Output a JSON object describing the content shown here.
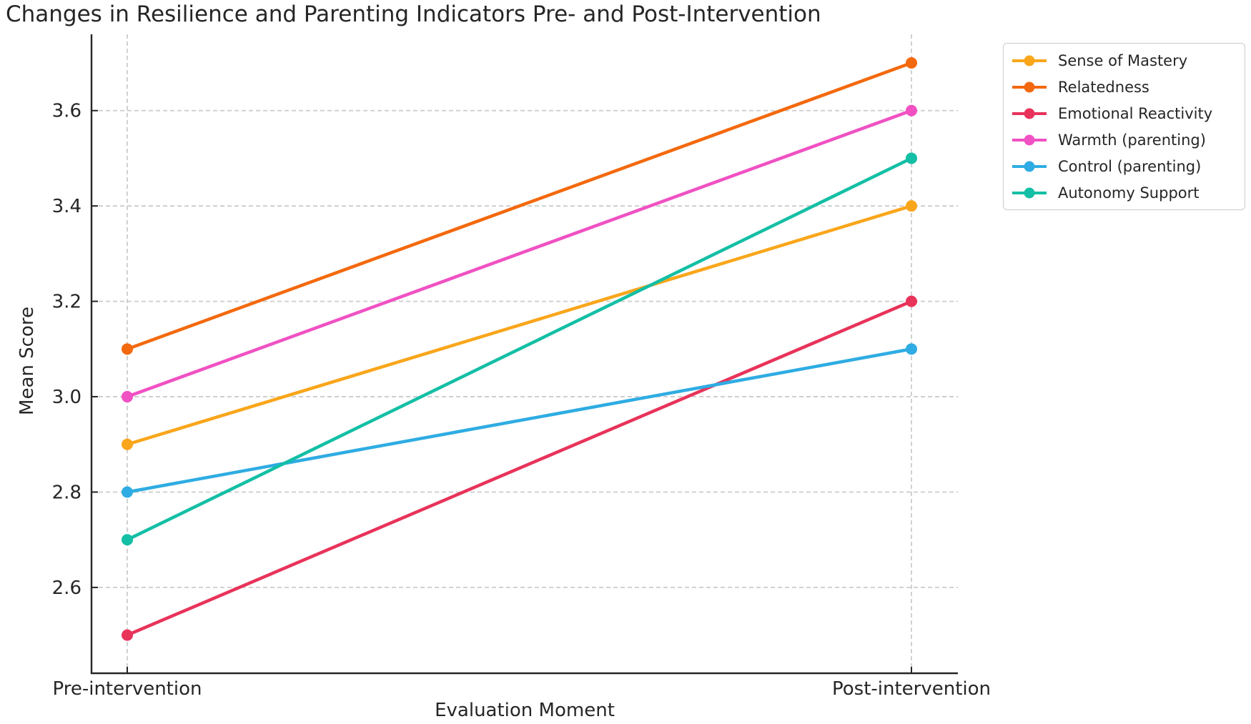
{
  "chart_data": {
    "type": "line",
    "title": "Changes in Resilience and Parenting Indicators Pre- and Post-Intervention",
    "xlabel": "Evaluation Moment",
    "ylabel": "Mean Score",
    "categories": [
      "Pre-intervention",
      "Post-intervention"
    ],
    "series": [
      {
        "name": "Sense of Mastery",
        "color": "#F9A61B",
        "values": [
          2.9,
          3.4
        ]
      },
      {
        "name": "Relatedness",
        "color": "#F3690E",
        "values": [
          3.1,
          3.7
        ]
      },
      {
        "name": "Emotional Reactivity",
        "color": "#E8335A",
        "values": [
          2.5,
          3.2
        ]
      },
      {
        "name": "Warmth (parenting)",
        "color": "#F051C3",
        "values": [
          3.0,
          3.6
        ]
      },
      {
        "name": "Control (parenting)",
        "color": "#2FACE3",
        "values": [
          2.8,
          3.1
        ]
      },
      {
        "name": "Autonomy Support",
        "color": "#13BFA5",
        "values": [
          2.7,
          3.5
        ]
      }
    ],
    "yticks": [
      "2.6",
      "2.8",
      "3.0",
      "3.2",
      "3.4",
      "3.6"
    ],
    "ylim": [
      2.42,
      3.76
    ],
    "grid": "dashed horizontal and vertical gridlines",
    "grid_color": "#cccccc",
    "spine_color": "#262626",
    "legend_position": "upper right, outside plot area",
    "marker": "filled circle"
  }
}
